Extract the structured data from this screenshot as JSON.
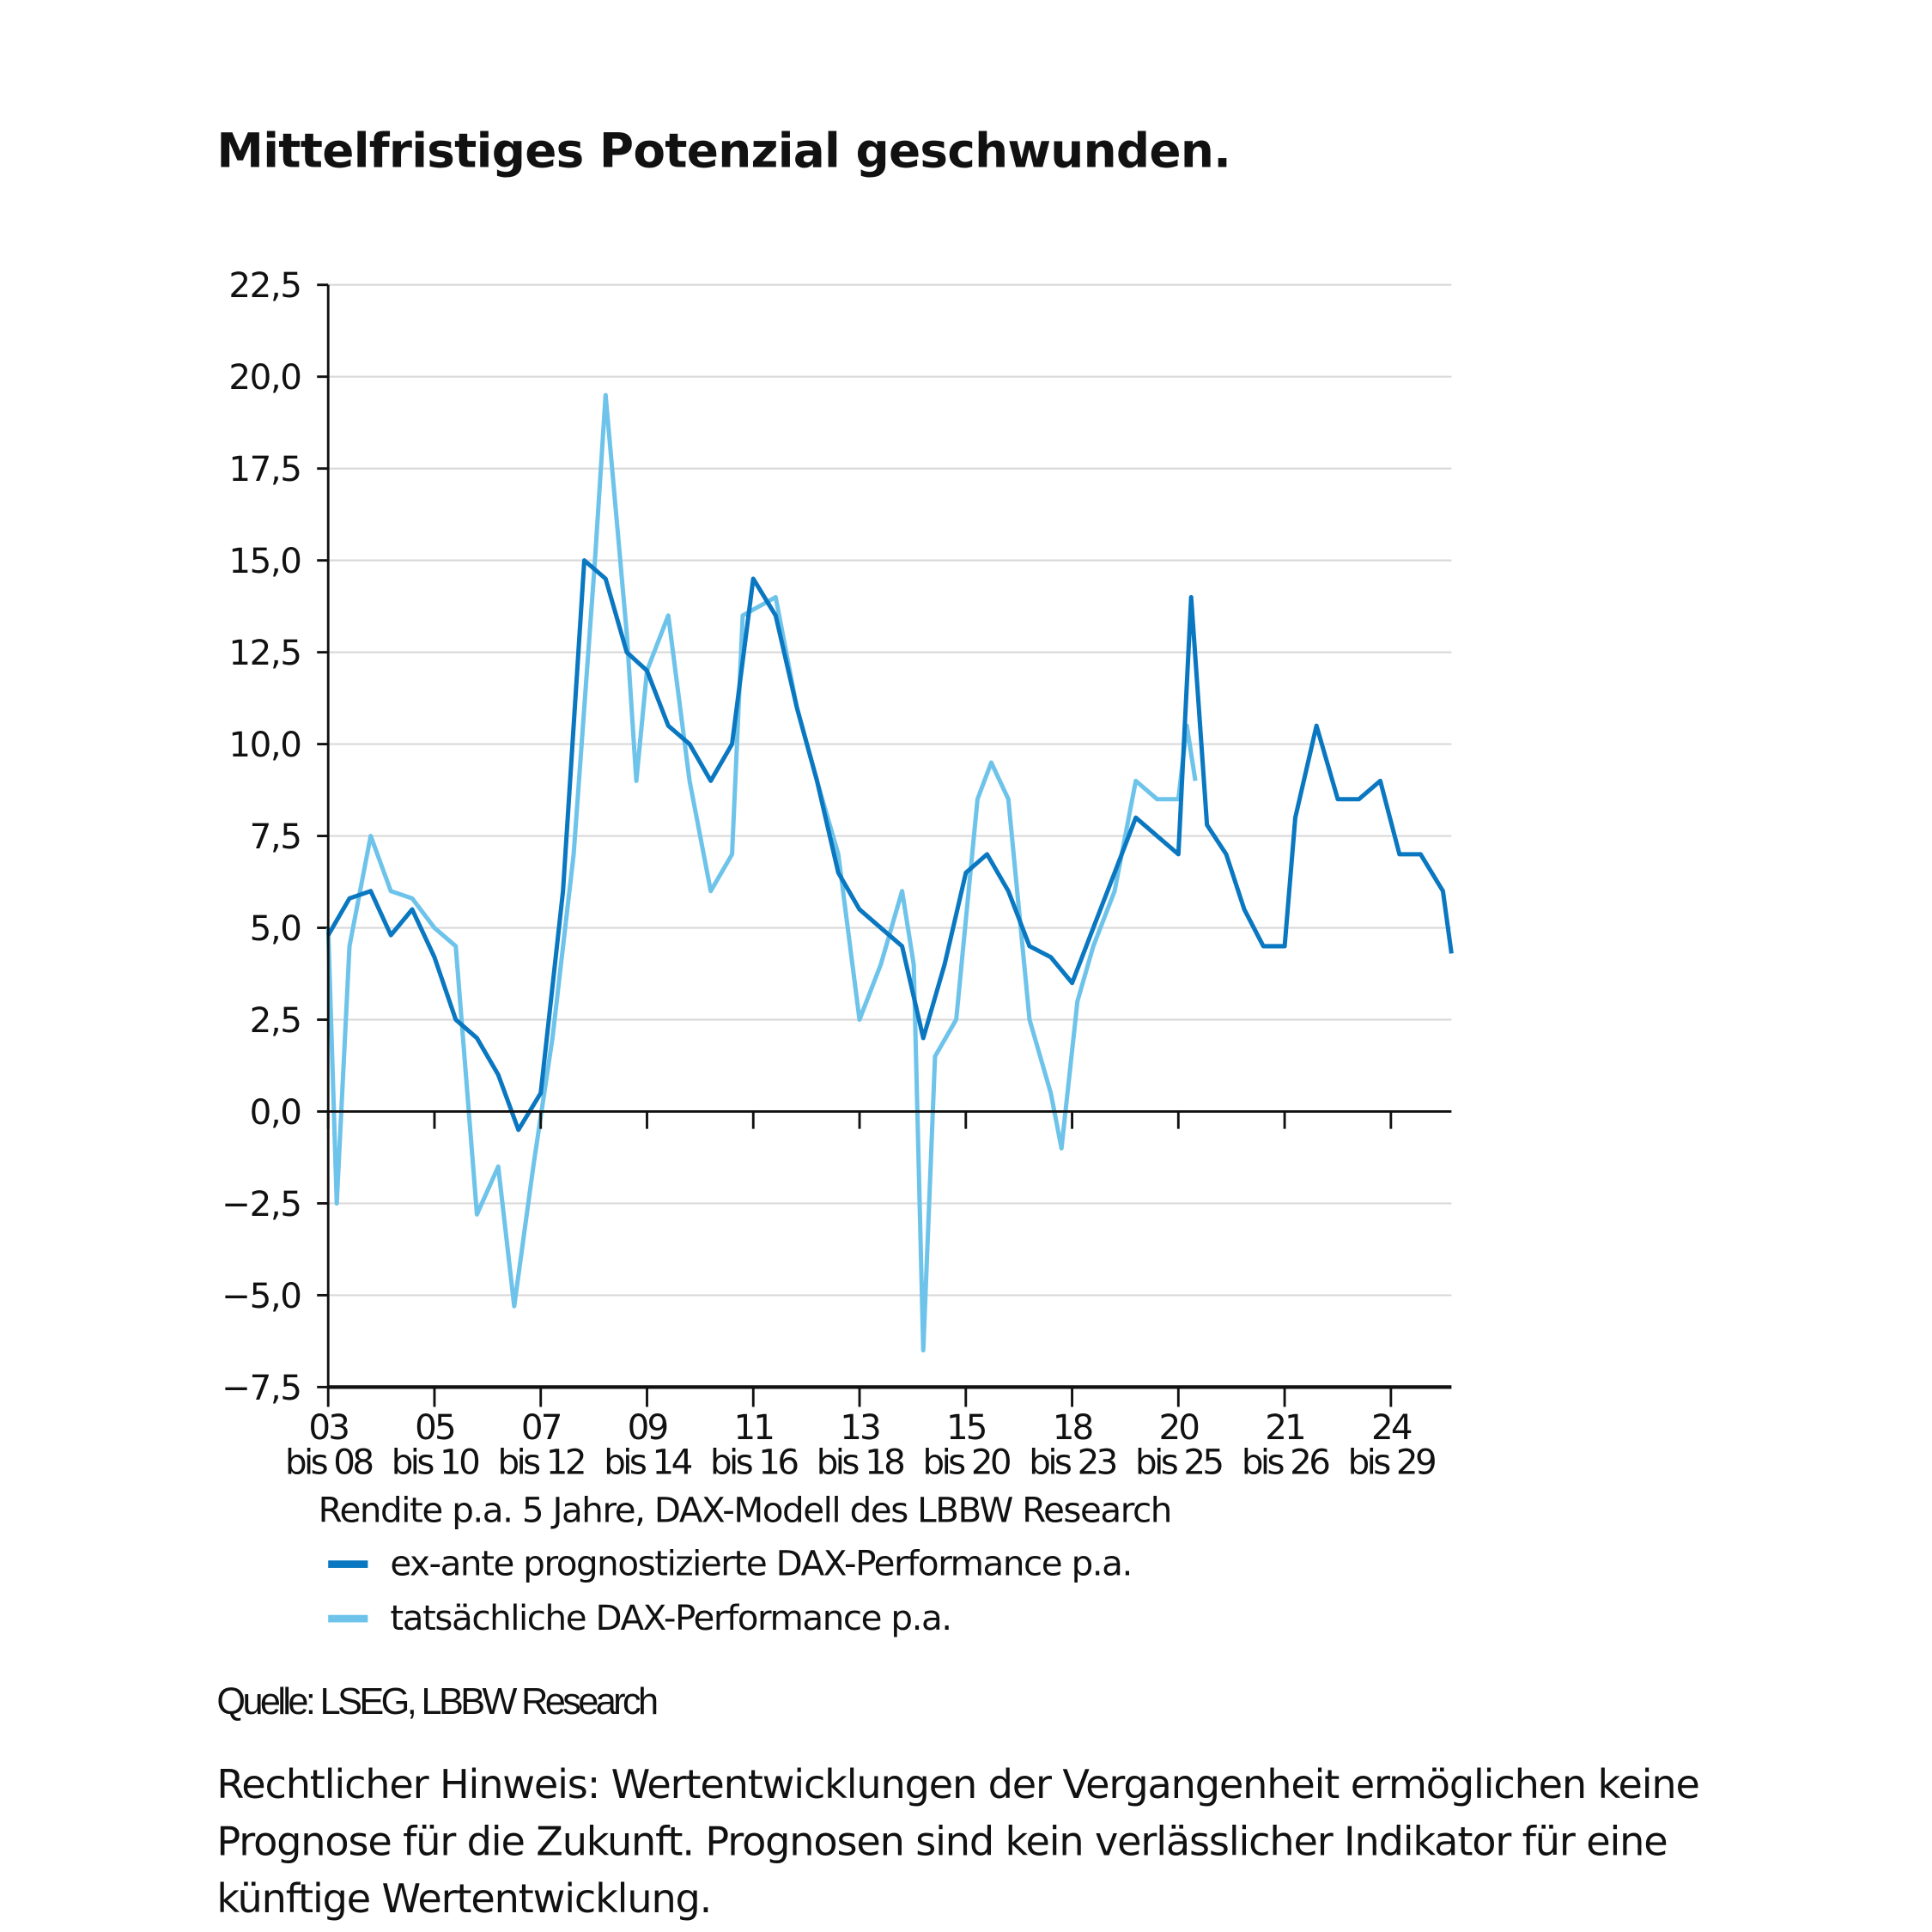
{
  "title": "Mittelfristiges Potenzial geschwunden.",
  "chart_data": {
    "type": "line",
    "title": "Mittelfristiges Potenzial geschwunden.",
    "subtitle": "Rendite p.a. 5 Jahre, DAX-Modell des LBBW Research",
    "ylim": [
      -7.5,
      22.5
    ],
    "yticks": [
      "22,5",
      "20,0",
      "17,5",
      "15,0",
      "12,5",
      "10,0",
      "7,5",
      "5,0",
      "2,5",
      "0,0",
      "−2,5",
      "−5,0",
      "−7,5"
    ],
    "ytick_values": [
      22.5,
      20,
      17.5,
      15,
      12.5,
      10,
      7.5,
      5,
      2.5,
      0,
      -2.5,
      -5,
      -7.5
    ],
    "xticks": [
      {
        "top": "03",
        "bottom": "bis 08"
      },
      {
        "top": "05",
        "bottom": "bis 10"
      },
      {
        "top": "07",
        "bottom": "bis 12"
      },
      {
        "top": "09",
        "bottom": "bis 14"
      },
      {
        "top": "11",
        "bottom": "bis 16"
      },
      {
        "top": "13",
        "bottom": "bis 18"
      },
      {
        "top": "15",
        "bottom": "bis 20"
      },
      {
        "top": "18",
        "bottom": "bis 23"
      },
      {
        "top": "20",
        "bottom": "bis 25"
      },
      {
        "top": "21",
        "bottom": "bis 26"
      },
      {
        "top": "24",
        "bottom": "bis 29"
      }
    ],
    "xlim": [
      0,
      10.57
    ],
    "grid": true,
    "legend_placement": "bottom",
    "series": [
      {
        "name": "ex-ante prognostizierte DAX-Performance p.a.",
        "color": "#0a77c1",
        "x": [
          0,
          0.2,
          0.4,
          0.59,
          0.79,
          1.0,
          1.2,
          1.4,
          1.6,
          1.79,
          2.0,
          2.21,
          2.41,
          2.61,
          2.81,
          3.0,
          3.2,
          3.4,
          3.6,
          3.8,
          4.0,
          4.21,
          4.41,
          4.6,
          4.8,
          5.0,
          5.2,
          5.4,
          5.6,
          5.8,
          6.0,
          6.2,
          6.4,
          6.6,
          6.8,
          7.0,
          7.2,
          7.4,
          7.6,
          7.8,
          8.0,
          8.12,
          8.27,
          8.45,
          8.62,
          8.8,
          9.0,
          9.1,
          9.3,
          9.5,
          9.7,
          9.9,
          10.08,
          10.28,
          10.49,
          10.57
        ],
        "y": [
          4.8,
          5.8,
          6.0,
          4.8,
          5.5,
          4.2,
          2.5,
          2.0,
          1.0,
          -0.5,
          0.5,
          6.0,
          15.0,
          14.5,
          12.5,
          12.0,
          10.5,
          10.0,
          9.0,
          10.0,
          14.5,
          13.5,
          11.0,
          9.0,
          6.5,
          5.5,
          5.0,
          4.5,
          2.0,
          4.0,
          6.5,
          7.0,
          6.0,
          4.5,
          4.2,
          3.5,
          5.0,
          6.5,
          8.0,
          7.5,
          7.0,
          14.0,
          7.8,
          7.0,
          5.5,
          4.5,
          4.5,
          8.0,
          10.5,
          8.5,
          8.5,
          9.0,
          7.0,
          7.0,
          6.0,
          4.3
        ]
      },
      {
        "name": "tatsächliche DAX-Performance p.a.",
        "color": "#6ec3ea",
        "x": [
          0,
          0.08,
          0.2,
          0.4,
          0.59,
          0.79,
          1.0,
          1.2,
          1.4,
          1.6,
          1.75,
          1.93,
          2.11,
          2.31,
          2.51,
          2.61,
          2.81,
          2.9,
          3.0,
          3.2,
          3.4,
          3.6,
          3.8,
          3.9,
          4.21,
          4.41,
          4.6,
          4.8,
          5.0,
          5.2,
          5.4,
          5.51,
          5.6,
          5.71,
          5.91,
          6.11,
          6.24,
          6.4,
          6.6,
          6.8,
          6.9,
          7.05,
          7.2,
          7.4,
          7.6,
          7.8,
          8.0,
          8.08,
          8.16
        ],
        "y": [
          5.0,
          -2.5,
          4.5,
          7.5,
          6.0,
          5.8,
          5.0,
          4.5,
          -2.8,
          -1.5,
          -5.3,
          -1.5,
          2.0,
          7.0,
          15.0,
          19.5,
          13.0,
          9.0,
          12.0,
          13.5,
          9.0,
          6.0,
          7.0,
          13.5,
          14.0,
          11.0,
          9.0,
          7.0,
          2.5,
          4.0,
          6.0,
          4.0,
          -6.5,
          1.5,
          2.5,
          8.5,
          9.5,
          8.5,
          2.5,
          0.5,
          -1.0,
          3.0,
          4.5,
          6.0,
          9.0,
          8.5,
          8.5,
          10.5,
          9.0
        ]
      }
    ]
  },
  "source": "Quelle: LSEG, LBBW Research",
  "note": "Rechtlicher Hinweis: Wertentwicklungen der Vergangenheit ermöglichen keine Prognose für die Zukunft. Prognosen sind kein verlässlicher Indikator für eine künftige Wertentwicklung."
}
